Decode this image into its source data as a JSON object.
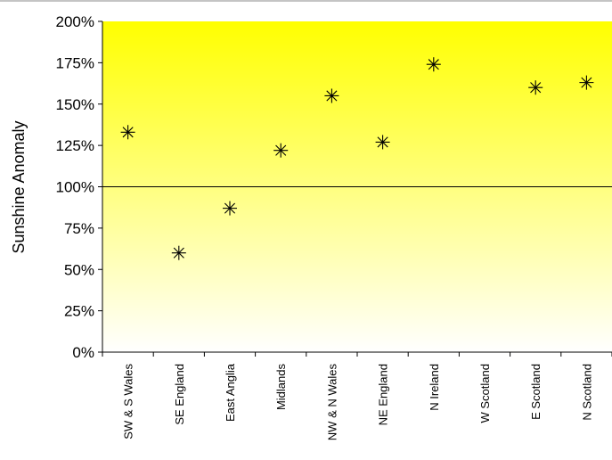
{
  "chart_data": {
    "type": "scatter",
    "ylabel": "Sunshine Anomaly",
    "categories": [
      "SW & S Wales",
      "SE England",
      "East Anglia",
      "Midlands",
      "NW & N Wales",
      "NE England",
      "N Ireland",
      "W Scotland",
      "E Scotland",
      "N Scotland"
    ],
    "values": [
      133,
      60,
      87,
      122,
      155,
      127,
      174,
      null,
      160,
      163
    ],
    "ylim": [
      0,
      200
    ],
    "ytick_values": [
      0,
      25,
      50,
      75,
      100,
      125,
      150,
      175,
      200
    ],
    "ytick_labels": [
      "0%",
      "25%",
      "50%",
      "75%",
      "100%",
      "125%",
      "150%",
      "175%",
      "200%"
    ],
    "reference_line": 100,
    "marker": "asterisk",
    "background_gradient": [
      "#ffff00",
      "#ffffff"
    ],
    "grid": false
  }
}
